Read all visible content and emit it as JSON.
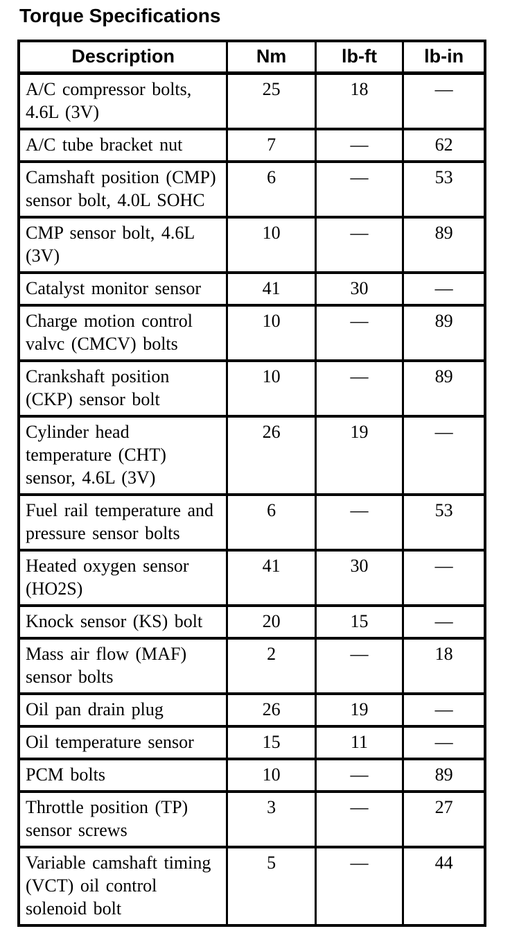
{
  "page": {
    "title": "Torque Specifications"
  },
  "table": {
    "columns": [
      "Description",
      "Nm",
      "lb-ft",
      "lb-in"
    ],
    "rows": [
      {
        "description": "A/C compressor bolts, 4.6L (3V)",
        "nm": "25",
        "lb_ft": "18",
        "lb_in": "—"
      },
      {
        "description": "A/C tube bracket nut",
        "nm": "7",
        "lb_ft": "—",
        "lb_in": "62"
      },
      {
        "description": "Camshaft position (CMP) sensor bolt, 4.0L SOHC",
        "nm": "6",
        "lb_ft": "—",
        "lb_in": "53"
      },
      {
        "description": "CMP sensor bolt, 4.6L (3V)",
        "nm": "10",
        "lb_ft": "—",
        "lb_in": "89"
      },
      {
        "description": "Catalyst monitor sensor",
        "nm": "41",
        "lb_ft": "30",
        "lb_in": "—"
      },
      {
        "description": "Charge motion control valvc (CMCV) bolts",
        "nm": "10",
        "lb_ft": "—",
        "lb_in": "89"
      },
      {
        "description": "Crankshaft position (CKP) sensor bolt",
        "nm": "10",
        "lb_ft": "—",
        "lb_in": "89"
      },
      {
        "description": "Cylinder head temperature (CHT) sensor, 4.6L (3V)",
        "nm": "26",
        "lb_ft": "19",
        "lb_in": "—"
      },
      {
        "description": "Fuel rail temperature and pressure sensor bolts",
        "nm": "6",
        "lb_ft": "—",
        "lb_in": "53"
      },
      {
        "description": "Heated oxygen sensor (HO2S)",
        "nm": "41",
        "lb_ft": "30",
        "lb_in": "—"
      },
      {
        "description": "Knock sensor (KS) bolt",
        "nm": "20",
        "lb_ft": "15",
        "lb_in": "—"
      },
      {
        "description": "Mass air flow (MAF) sensor bolts",
        "nm": "2",
        "lb_ft": "—",
        "lb_in": "18"
      },
      {
        "description": "Oil pan drain plug",
        "nm": "26",
        "lb_ft": "19",
        "lb_in": "—"
      },
      {
        "description": "Oil temperature sensor",
        "nm": "15",
        "lb_ft": "11",
        "lb_in": "—"
      },
      {
        "description": "PCM bolts",
        "nm": "10",
        "lb_ft": "—",
        "lb_in": "89"
      },
      {
        "description": "Throttle position (TP) sensor screws",
        "nm": "3",
        "lb_ft": "—",
        "lb_in": "27"
      },
      {
        "description": "Variable camshaft timing (VCT) oil control solenoid bolt",
        "nm": "5",
        "lb_ft": "—",
        "lb_in": "44"
      }
    ]
  }
}
